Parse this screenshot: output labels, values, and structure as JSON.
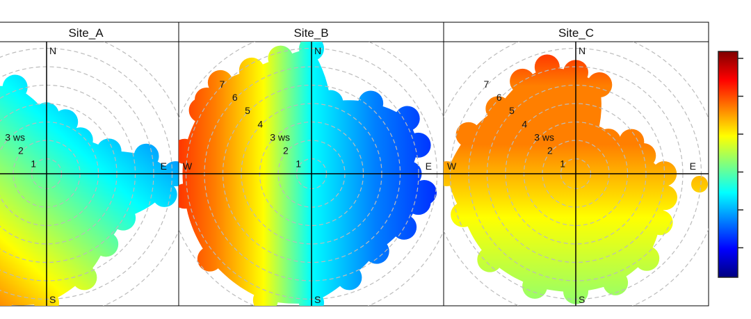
{
  "chart_data": {
    "type": "polar",
    "panels": [
      {
        "title": "Site_A",
        "low_colour_dir": "east/north",
        "high_colour_dir": "south-west"
      },
      {
        "title": "Site_B",
        "low_colour_dir": "east",
        "high_colour_dir": "west"
      },
      {
        "title": "Site_C",
        "low_colour_dir": "south",
        "high_colour_dir": "north"
      }
    ],
    "compass": [
      "N",
      "E",
      "S",
      "W"
    ],
    "radial_axis": {
      "label": "ws",
      "ticks": [
        "1",
        "2",
        "3",
        "4",
        "5",
        "6",
        "7"
      ]
    },
    "colorbar": {
      "colors": [
        "#00007f",
        "#0000ff",
        "#007fff",
        "#00ffff",
        "#7fff7f",
        "#ffff00",
        "#ff7f00",
        "#ff0000",
        "#7f0000"
      ],
      "tick_count": 6
    }
  }
}
